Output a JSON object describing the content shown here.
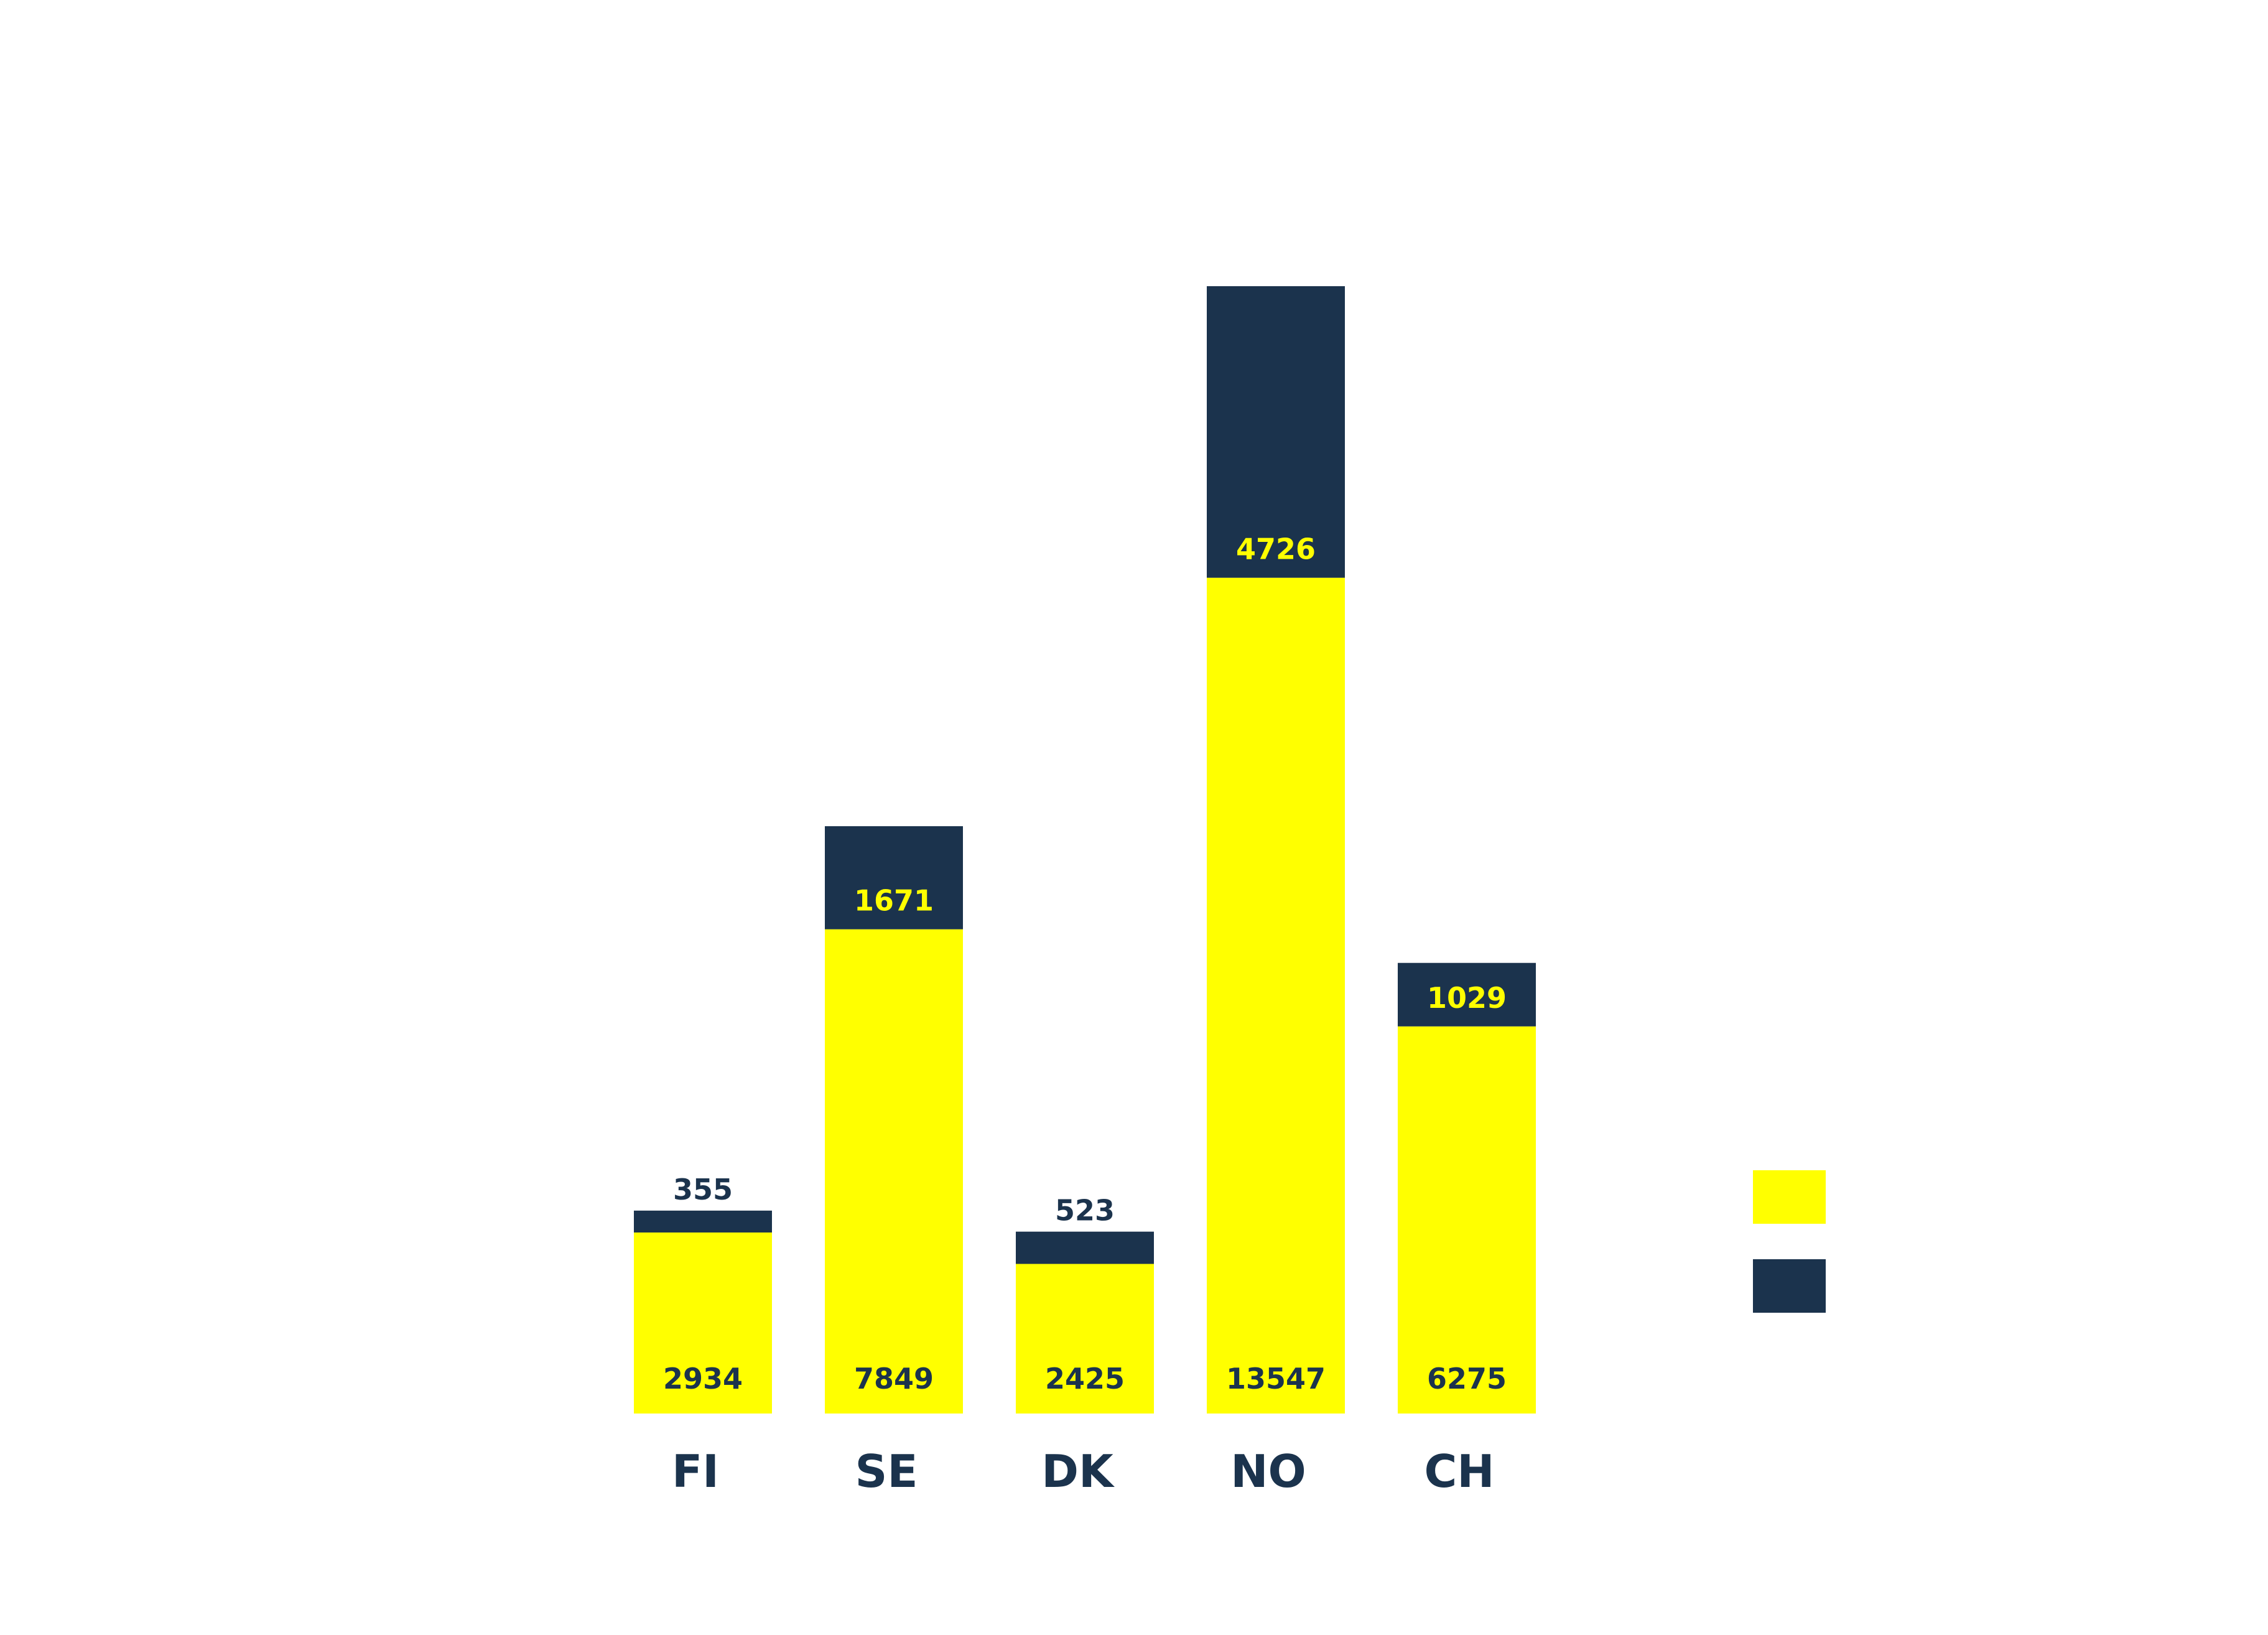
{
  "chart_data": {
    "type": "bar",
    "stacked": true,
    "categories": [
      "FI",
      "SE",
      "DK",
      "NO",
      "CH"
    ],
    "series": [
      {
        "values": [
          2934,
          7849,
          2425,
          13547,
          6275
        ],
        "color": "#FFFF00",
        "label_color": "#1B334D"
      },
      {
        "values": [
          355,
          1671,
          523,
          4726,
          1029
        ],
        "color": "#1B334D",
        "label_color": "#FFFF00"
      }
    ],
    "title": "",
    "xlabel": "",
    "ylabel": "",
    "ylim": [
      0,
      18273
    ],
    "grid": false,
    "legend": {
      "placement": "right",
      "entries": [
        "",
        ""
      ]
    },
    "text_color": "#1B334D"
  }
}
